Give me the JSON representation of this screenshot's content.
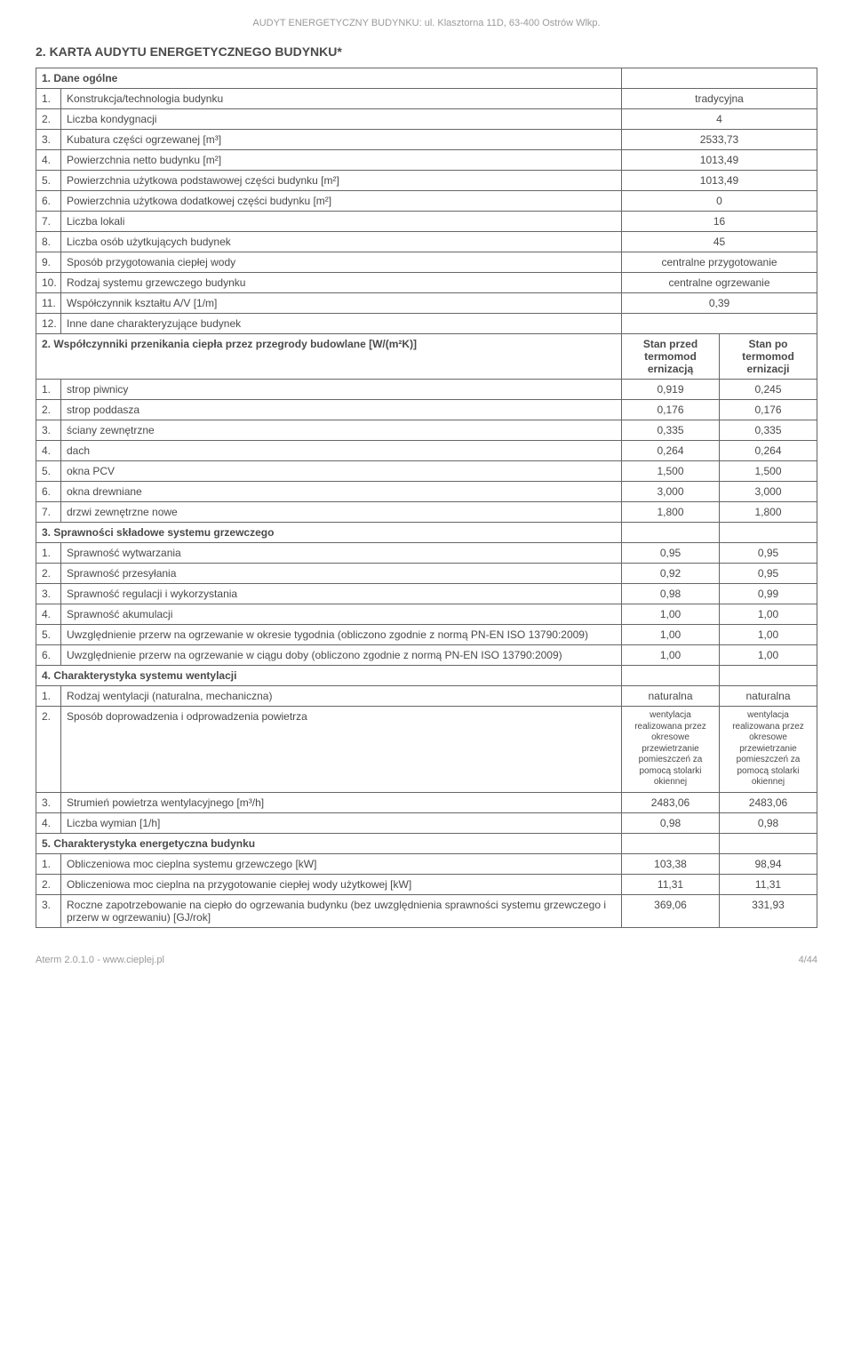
{
  "header": "AUDYT ENERGETYCZNY BUDYNKU: ul. Klasztorna 11D, 63-400 Ostrów Wlkp.",
  "title": "2.  KARTA AUDYTU ENERGETYCZNEGO BUDYNKU*",
  "s1": {
    "title": "1. Dane ogólne",
    "rows": [
      {
        "n": "1.",
        "l": "Konstrukcja/technologia budynku",
        "v": "tradycyjna"
      },
      {
        "n": "2.",
        "l": "Liczba kondygnacji",
        "v": "4"
      },
      {
        "n": "3.",
        "l": "Kubatura części ogrzewanej [m³]",
        "v": "2533,73"
      },
      {
        "n": "4.",
        "l": "Powierzchnia netto budynku [m²]",
        "v": "1013,49"
      },
      {
        "n": "5.",
        "l": "Powierzchnia użytkowa podstawowej części budynku [m²]",
        "v": "1013,49"
      },
      {
        "n": "6.",
        "l": "Powierzchnia użytkowa dodatkowej części budynku [m²]",
        "v": "0"
      },
      {
        "n": "7.",
        "l": "Liczba lokali",
        "v": "16"
      },
      {
        "n": "8.",
        "l": "Liczba osób użytkujących budynek",
        "v": "45"
      },
      {
        "n": "9.",
        "l": "Sposób przygotowania ciepłej wody",
        "v": "centralne przygotowanie"
      },
      {
        "n": "10.",
        "l": "Rodzaj systemu grzewczego budynku",
        "v": "centralne ogrzewanie"
      },
      {
        "n": "11.",
        "l": "Współczynnik kształtu A/V [1/m]",
        "v": "0,39"
      },
      {
        "n": "12.",
        "l": "Inne dane charakteryzujące budynek",
        "v": ""
      }
    ]
  },
  "s2": {
    "title": "2. Współczynniki przenikania ciepła przez przegrody budowlane [W/(m²K)]",
    "col1": "Stan przed termomod ernizacją",
    "col2": "Stan po termomod ernizacji",
    "rows": [
      {
        "n": "1.",
        "l": "strop piwnicy",
        "v1": "0,919",
        "v2": "0,245"
      },
      {
        "n": "2.",
        "l": "strop poddasza",
        "v1": "0,176",
        "v2": "0,176"
      },
      {
        "n": "3.",
        "l": "ściany zewnętrzne",
        "v1": "0,335",
        "v2": "0,335"
      },
      {
        "n": "4.",
        "l": "dach",
        "v1": "0,264",
        "v2": "0,264"
      },
      {
        "n": "5.",
        "l": "okna PCV",
        "v1": "1,500",
        "v2": "1,500"
      },
      {
        "n": "6.",
        "l": "okna drewniane",
        "v1": "3,000",
        "v2": "3,000"
      },
      {
        "n": "7.",
        "l": "drzwi zewnętrzne nowe",
        "v1": "1,800",
        "v2": "1,800"
      }
    ]
  },
  "s3": {
    "title": "3. Sprawności składowe systemu grzewczego",
    "rows": [
      {
        "n": "1.",
        "l": "Sprawność wytwarzania",
        "v1": "0,95",
        "v2": "0,95"
      },
      {
        "n": "2.",
        "l": "Sprawność przesyłania",
        "v1": "0,92",
        "v2": "0,95"
      },
      {
        "n": "3.",
        "l": "Sprawność regulacji i wykorzystania",
        "v1": "0,98",
        "v2": "0,99"
      },
      {
        "n": "4.",
        "l": "Sprawność akumulacji",
        "v1": "1,00",
        "v2": "1,00"
      },
      {
        "n": "5.",
        "l": "Uwzględnienie przerw na ogrzewanie w okresie tygodnia (obliczono zgodnie z normą PN-EN ISO 13790:2009)",
        "v1": "1,00",
        "v2": "1,00"
      },
      {
        "n": "6.",
        "l": "Uwzględnienie przerw na ogrzewanie w ciągu doby (obliczono zgodnie z normą PN-EN ISO 13790:2009)",
        "v1": "1,00",
        "v2": "1,00"
      }
    ]
  },
  "s4": {
    "title": "4. Charakterystyka systemu wentylacji",
    "rows": [
      {
        "n": "1.",
        "l": "Rodzaj wentylacji (naturalna, mechaniczna)",
        "v1": "naturalna",
        "v2": "naturalna",
        "small": false
      },
      {
        "n": "2.",
        "l": "Sposób doprowadzenia i odprowadzenia powietrza",
        "v1": "wentylacja realizowana przez okresowe przewietrzanie pomieszczeń za pomocą stolarki okiennej",
        "v2": "wentylacja realizowana przez okresowe przewietrzanie pomieszczeń za pomocą stolarki okiennej",
        "small": true
      },
      {
        "n": "3.",
        "l": "Strumień powietrza wentylacyjnego [m³/h]",
        "v1": "2483,06",
        "v2": "2483,06",
        "small": false
      },
      {
        "n": "4.",
        "l": "Liczba wymian [1/h]",
        "v1": "0,98",
        "v2": "0,98",
        "small": false
      }
    ]
  },
  "s5": {
    "title": "5. Charakterystyka energetyczna budynku",
    "rows": [
      {
        "n": "1.",
        "l": "Obliczeniowa moc cieplna systemu grzewczego [kW]",
        "v1": "103,38",
        "v2": "98,94"
      },
      {
        "n": "2.",
        "l": "Obliczeniowa moc cieplna na przygotowanie ciepłej wody użytkowej [kW]",
        "v1": "11,31",
        "v2": "11,31"
      },
      {
        "n": "3.",
        "l": "Roczne zapotrzebowanie na ciepło do ogrzewania budynku (bez uwzględnienia sprawności systemu grzewczego i przerw w ogrzewaniu) [GJ/rok]",
        "v1": "369,06",
        "v2": "331,93"
      }
    ]
  },
  "footer": {
    "left": "Aterm 2.0.1.0 - www.cieplej.pl",
    "right": "4/44"
  }
}
